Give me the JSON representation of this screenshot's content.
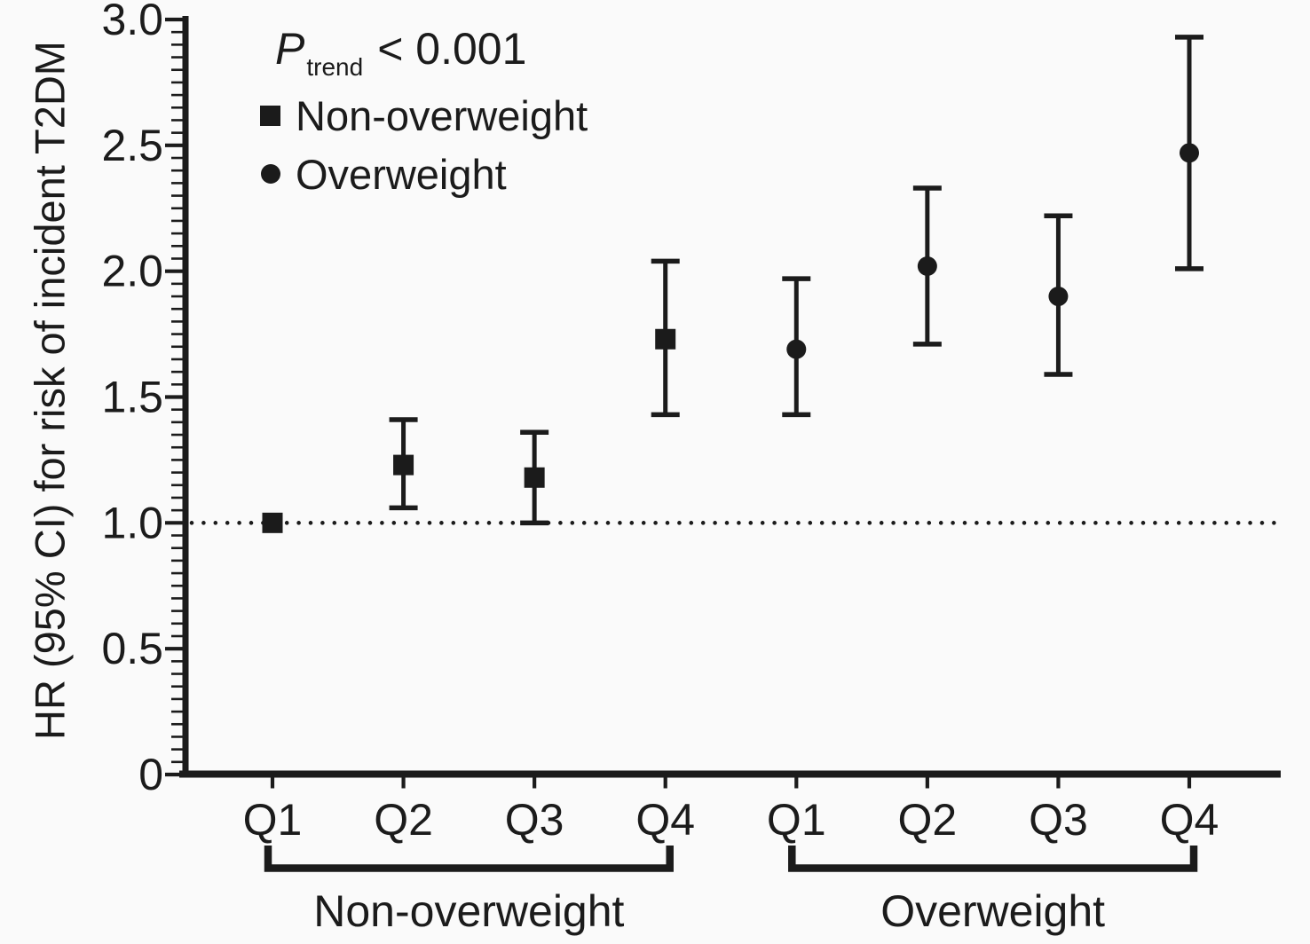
{
  "chart_data": {
    "type": "scatter",
    "description": "Forest-style plot of hazard ratios (95% CI) for incident T2DM by quartile, stratified by overweight status",
    "title": "",
    "xlabel": "",
    "ylabel": "HR (95% CI) for risk of incident T2DM",
    "annotation": {
      "p_symbol": "P",
      "p_subscript": "trend",
      "p_rest": "< 0.001"
    },
    "legend": [
      {
        "marker": "square",
        "label": "Non-overweight"
      },
      {
        "marker": "circle",
        "label": "Overweight"
      }
    ],
    "legend_position": "top-left-inside",
    "grid": false,
    "y_axis": {
      "min": 0,
      "max": 3.0,
      "minor_step": 0.05,
      "major_ticks": [
        {
          "value": 0,
          "label": "0"
        },
        {
          "value": 0.5,
          "label": "0.5"
        },
        {
          "value": 1.0,
          "label": "1.0"
        },
        {
          "value": 1.5,
          "label": "1.5"
        },
        {
          "value": 2.0,
          "label": "2.0"
        },
        {
          "value": 2.5,
          "label": "2.5"
        },
        {
          "value": 3.0,
          "label": "3.0"
        }
      ]
    },
    "reference_line_y": 1.0,
    "x_categories": [
      "Q1",
      "Q2",
      "Q3",
      "Q4",
      "Q1",
      "Q2",
      "Q3",
      "Q4"
    ],
    "groups": [
      {
        "label": "Non-overweight",
        "marker": "square",
        "start_index": 0,
        "end_index": 3
      },
      {
        "label": "Overweight",
        "marker": "circle",
        "start_index": 4,
        "end_index": 7
      }
    ],
    "points": [
      {
        "group": "Non-overweight",
        "quartile": "Q1",
        "hr": 1.0,
        "ci_low": null,
        "ci_high": null,
        "reference": true
      },
      {
        "group": "Non-overweight",
        "quartile": "Q2",
        "hr": 1.23,
        "ci_low": 1.06,
        "ci_high": 1.41,
        "reference": false
      },
      {
        "group": "Non-overweight",
        "quartile": "Q3",
        "hr": 1.18,
        "ci_low": 1.0,
        "ci_high": 1.36,
        "reference": false
      },
      {
        "group": "Non-overweight",
        "quartile": "Q4",
        "hr": 1.73,
        "ci_low": 1.43,
        "ci_high": 2.04,
        "reference": false
      },
      {
        "group": "Overweight",
        "quartile": "Q1",
        "hr": 1.69,
        "ci_low": 1.43,
        "ci_high": 1.97,
        "reference": false
      },
      {
        "group": "Overweight",
        "quartile": "Q2",
        "hr": 2.02,
        "ci_low": 1.71,
        "ci_high": 2.33,
        "reference": false
      },
      {
        "group": "Overweight",
        "quartile": "Q3",
        "hr": 1.9,
        "ci_low": 1.59,
        "ci_high": 2.22,
        "reference": false
      },
      {
        "group": "Overweight",
        "quartile": "Q4",
        "hr": 2.47,
        "ci_low": 2.01,
        "ci_high": 2.93,
        "reference": false
      }
    ],
    "colors": {
      "ink": "#1b1b1b",
      "background": "#fafafa"
    }
  }
}
